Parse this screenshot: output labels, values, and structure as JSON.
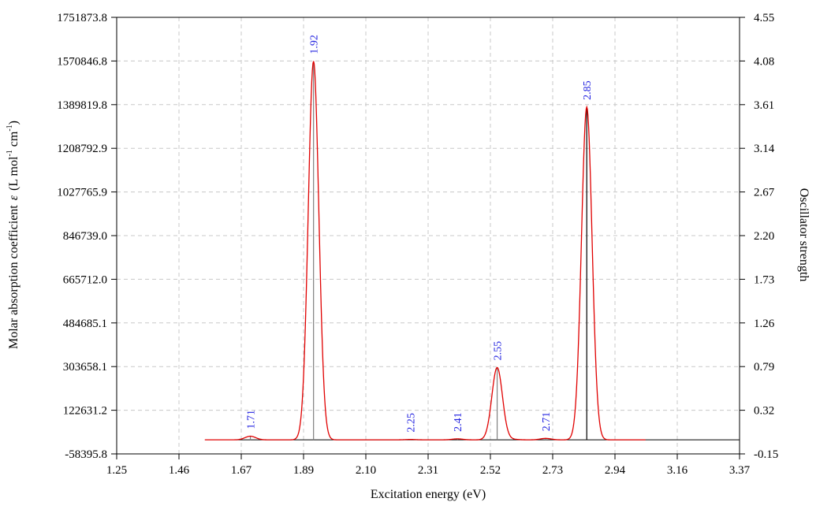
{
  "chart_data": {
    "type": "line",
    "xlabel": "Excitation energy (eV)",
    "ylabel": "Molar absorption coefficient",
    "ylabel_symbol": "ε",
    "ylabel_unit_prefix": "(L mol",
    "ylabel_unit_mid": " cm",
    "ylabel_unit_suffix": ")",
    "ylabel_unit_exp": "-1",
    "y2label": "Oscillator strength",
    "xlim": [
      1.25,
      3.37
    ],
    "ylim": [
      -58395.8,
      1751873.8
    ],
    "y2lim": [
      -0.15,
      4.55
    ],
    "grid": true,
    "x_ticks": [
      "1.25",
      "1.46",
      "1.67",
      "1.89",
      "2.10",
      "2.31",
      "2.52",
      "2.73",
      "2.94",
      "3.16",
      "3.37"
    ],
    "y_ticks": [
      "1751873.8",
      "1570846.8",
      "1389819.8",
      "1208792.9",
      "1027765.9",
      "846739.0",
      "665712.0",
      "484685.1",
      "303658.1",
      "122631.2",
      "-58395.8"
    ],
    "y2_ticks": [
      "4.55",
      "4.08",
      "3.61",
      "3.14",
      "2.67",
      "2.20",
      "1.73",
      "1.26",
      "0.79",
      "0.32",
      "-0.15"
    ],
    "spectrum_color": "#e00000",
    "stick_colors": {
      "gray": "#808080",
      "black": "#000000"
    },
    "sigma": 0.018,
    "transitions": [
      {
        "energy": 1.705,
        "epsilon": 15000,
        "f": 0.04,
        "label": "1.71",
        "stick_color": "gray"
      },
      {
        "energy": 1.92,
        "epsilon": 1570000,
        "f": 4.08,
        "label": "1.92",
        "stick_color": "gray"
      },
      {
        "energy": 2.25,
        "epsilon": 1500,
        "f": 0.004,
        "label": "2.25",
        "stick_color": "gray"
      },
      {
        "energy": 2.41,
        "epsilon": 4000,
        "f": 0.012,
        "label": "2.41",
        "stick_color": "gray"
      },
      {
        "energy": 2.545,
        "epsilon": 300000,
        "f": 0.79,
        "label": "2.55",
        "stick_color": "gray"
      },
      {
        "energy": 2.6,
        "epsilon": 2000,
        "f": 0.02,
        "label": "",
        "stick_color": "black"
      },
      {
        "energy": 2.71,
        "epsilon": 6000,
        "f": 0.02,
        "label": "2.71",
        "stick_color": "gray"
      },
      {
        "energy": 2.85,
        "epsilon": 1380000,
        "f": 3.58,
        "label": "2.85",
        "stick_color": "black"
      }
    ]
  }
}
